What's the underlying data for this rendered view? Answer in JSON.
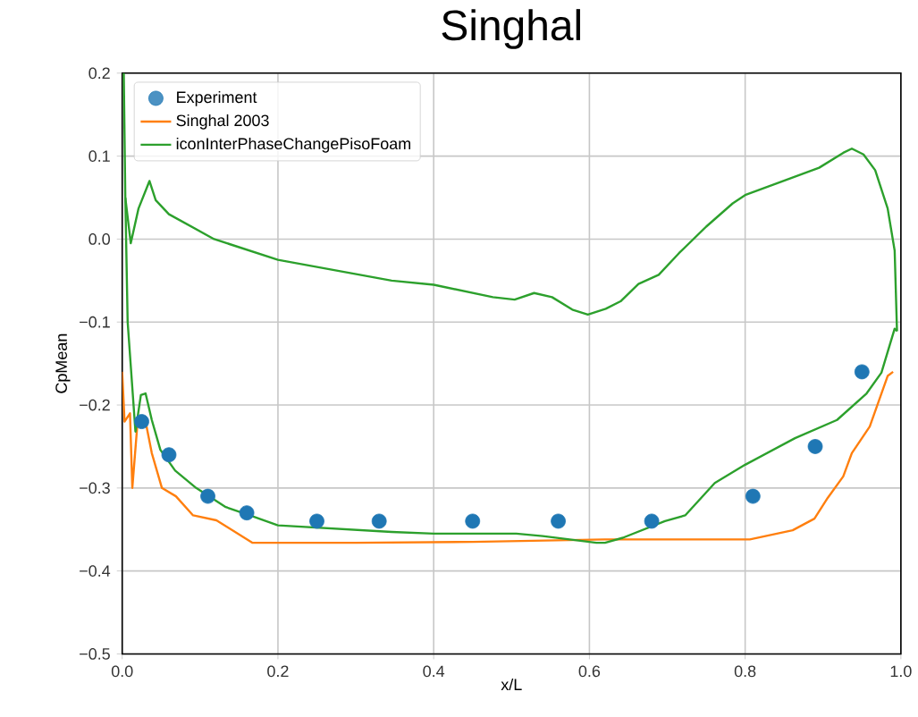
{
  "chart_data": {
    "type": "line",
    "title": "Singhal",
    "xlabel": "x/L",
    "ylabel": "CpMean",
    "xlim": [
      0,
      1
    ],
    "ylim": [
      -0.5,
      0.2
    ],
    "xticks": [
      {
        "value": 0,
        "label": "0.0"
      },
      0.2,
      0.4,
      0.6,
      0.8,
      {
        "value": 1,
        "label": "1.0"
      }
    ],
    "yticks": [
      {
        "value": -0.5,
        "label": "−0.5"
      },
      {
        "value": -0.4,
        "label": "−0.4"
      },
      {
        "value": -0.3,
        "label": "−0.3"
      },
      {
        "value": -0.2,
        "label": "−0.2"
      },
      {
        "value": -0.1,
        "label": "−0.1"
      },
      {
        "value": 0,
        "label": "0.0"
      },
      0.1,
      0.2
    ],
    "grid": true,
    "legend": "top left",
    "marker": "circle",
    "series": [
      {
        "name": "Experiment",
        "type": "scatter",
        "color": "#1f77b4",
        "x": [
          0.025,
          0.06,
          0.11,
          0.16,
          0.25,
          0.33,
          0.45,
          0.56,
          0.68,
          0.81,
          0.89,
          0.95
        ],
        "values": [
          -0.22,
          -0.26,
          -0.31,
          -0.33,
          -0.34,
          -0.34,
          -0.34,
          -0.34,
          -0.34,
          -0.31,
          -0.25,
          -0.16
        ]
      },
      {
        "name": "Singhal 2003",
        "marker": "none",
        "color": "#ff7f0e",
        "x": [
          0,
          0.003,
          0.01,
          0.013,
          0.02,
          0.03,
          0.038,
          0.051,
          0.069,
          0.091,
          0.121,
          0.167,
          0.3,
          0.45,
          0.62,
          0.806,
          0.861,
          0.889,
          0.906,
          0.926,
          0.937,
          0.96,
          0.983,
          0.99
        ],
        "values": [
          -0.16,
          -0.22,
          -0.21,
          -0.3,
          -0.217,
          -0.22,
          -0.258,
          -0.3,
          -0.31,
          -0.333,
          -0.339,
          -0.366,
          -0.366,
          -0.365,
          -0.362,
          -0.362,
          -0.351,
          -0.337,
          -0.312,
          -0.286,
          -0.258,
          -0.226,
          -0.165,
          -0.16
        ]
      },
      {
        "name": "iconInterPhaseChangePisoFoam",
        "marker": "none",
        "color": "#2ca02c",
        "x": [
          0.002,
          0.004,
          0.011,
          0.021,
          0.035,
          0.043,
          0.06,
          0.118,
          0.2,
          0.346,
          0.4,
          0.476,
          0.504,
          0.529,
          0.552,
          0.578,
          0.598,
          0.621,
          0.64,
          0.663,
          0.689,
          0.715,
          0.75,
          0.784,
          0.8,
          0.846,
          0.895,
          0.926,
          0.937,
          0.952,
          0.967,
          0.983,
          0.992,
          0.995
        ],
        "values": [
          0.2,
          0.05,
          -0.005,
          0.037,
          0.07,
          0.047,
          0.03,
          0.0,
          -0.025,
          -0.05,
          -0.055,
          -0.07,
          -0.073,
          -0.065,
          -0.07,
          -0.085,
          -0.091,
          -0.084,
          -0.075,
          -0.054,
          -0.043,
          -0.017,
          0.015,
          0.043,
          0.053,
          0.069,
          0.086,
          0.104,
          0.109,
          0.102,
          0.083,
          0.037,
          -0.014,
          -0.111
        ]
      },
      {
        "marker": "none",
        "color": "#2ca02c",
        "x": [
          0.004,
          0.007,
          0.017,
          0.024,
          0.03,
          0.038,
          0.049,
          0.068,
          0.095,
          0.133,
          0.167,
          0.2,
          0.346,
          0.4,
          0.506,
          0.54,
          0.609,
          0.62,
          0.643,
          0.697,
          0.723,
          0.761,
          0.8,
          0.864,
          0.918,
          0.956,
          0.975,
          0.992,
          0.995
        ],
        "values": [
          0.05,
          -0.1,
          -0.232,
          -0.188,
          -0.186,
          -0.218,
          -0.254,
          -0.279,
          -0.3,
          -0.323,
          -0.334,
          -0.345,
          -0.353,
          -0.355,
          -0.355,
          -0.358,
          -0.366,
          -0.366,
          -0.36,
          -0.34,
          -0.333,
          -0.294,
          -0.272,
          -0.24,
          -0.218,
          -0.186,
          -0.161,
          -0.108,
          -0.111
        ]
      }
    ]
  }
}
